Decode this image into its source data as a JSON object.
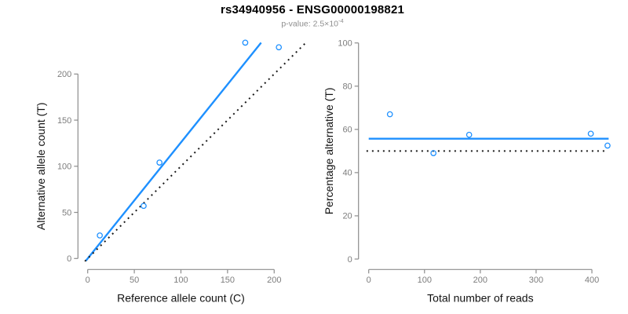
{
  "header": {
    "title": "rs34940956 - ENSG00000198821",
    "subtitle_prefix": "p-value: 2.5×10",
    "subtitle_exponent": "-4"
  },
  "colors": {
    "accent_blue": "#1E90FF",
    "axis_gray": "#8c8c8c",
    "tick_label_gray": "#7d7d7d",
    "axis_label_black": "#111111",
    "identity_black": "#1a1a1a",
    "subtitle_gray": "#8e8e8e"
  },
  "chart_data": [
    {
      "name": "allele-counts",
      "type": "scatter",
      "xlabel": "Reference allele count (C)",
      "ylabel": "Alternative allele count (T)",
      "xticks": [
        0,
        50,
        100,
        150,
        200
      ],
      "yticks": [
        0,
        50,
        100,
        150,
        200
      ],
      "xlim": [
        -8,
        237
      ],
      "ylim": [
        -9,
        243
      ],
      "grid": false,
      "legend": "none",
      "points": [
        [
          13,
          25
        ],
        [
          60,
          57
        ],
        [
          77,
          104
        ],
        [
          169,
          234
        ],
        [
          205,
          229
        ]
      ],
      "point_color": "#1E90FF",
      "lines": [
        {
          "id": "fit-line",
          "x1": -2,
          "y1": -2.5,
          "x2": 186,
          "y2": 234,
          "color": "#1E90FF",
          "dash": "solid",
          "width": 2.4
        },
        {
          "id": "identity-line",
          "x1": -3,
          "y1": -3,
          "x2": 233,
          "y2": 233,
          "color": "#1a1a1a",
          "dash": "dotted",
          "width": 2
        }
      ]
    },
    {
      "name": "percentage-vs-reads",
      "type": "scatter",
      "xlabel": "Total number of reads",
      "ylabel": "Percentage alternative (T)",
      "xticks": [
        0,
        100,
        200,
        300,
        400
      ],
      "yticks": [
        0,
        20,
        40,
        60,
        80,
        100
      ],
      "xlim": [
        -20,
        435
      ],
      "ylim": [
        -3,
        103
      ],
      "grid": false,
      "legend": "none",
      "points": [
        [
          38,
          67
        ],
        [
          116,
          49
        ],
        [
          180,
          57.5
        ],
        [
          398,
          58
        ],
        [
          428,
          52.5
        ]
      ],
      "point_color": "#1E90FF",
      "lines": [
        {
          "id": "mean-line",
          "x1": 0,
          "y1": 55.7,
          "x2": 430,
          "y2": 55.7,
          "color": "#1E90FF",
          "dash": "solid",
          "width": 2.4
        },
        {
          "id": "null-line",
          "x1": -4,
          "y1": 50,
          "x2": 425,
          "y2": 50,
          "color": "#1a1a1a",
          "dash": "dotted",
          "width": 2
        }
      ]
    }
  ]
}
